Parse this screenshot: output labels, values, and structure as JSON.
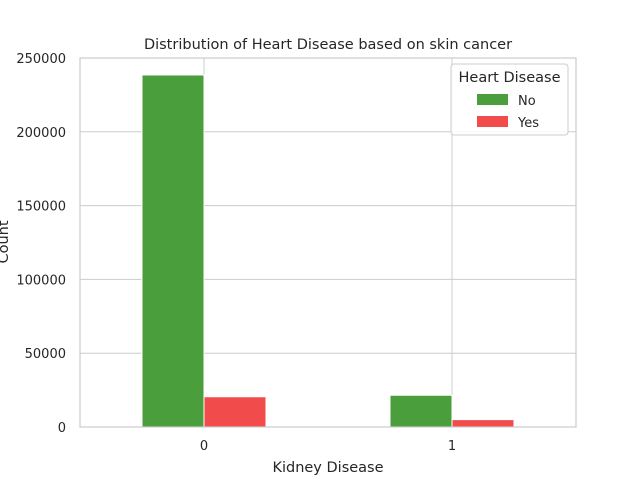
{
  "chart_data": {
    "type": "bar",
    "title": "Distribution of Heart Disease based on skin cancer",
    "xlabel": "Kidney Disease",
    "ylabel": "Count",
    "categories": [
      "0",
      "1"
    ],
    "series": [
      {
        "name": "No",
        "values": [
          238500,
          21500
        ],
        "color": "#4a9e3b"
      },
      {
        "name": "Yes",
        "values": [
          20500,
          5000
        ],
        "color": "#f24b4b"
      }
    ],
    "ylim": [
      0,
      250000
    ],
    "yticks": [
      0,
      50000,
      100000,
      150000,
      200000,
      250000
    ],
    "ytick_labels": [
      "0",
      "50000",
      "100000",
      "150000",
      "200000",
      "250000"
    ],
    "grid": true,
    "legend": {
      "title": "Heart Disease",
      "placement": "top-right"
    }
  }
}
